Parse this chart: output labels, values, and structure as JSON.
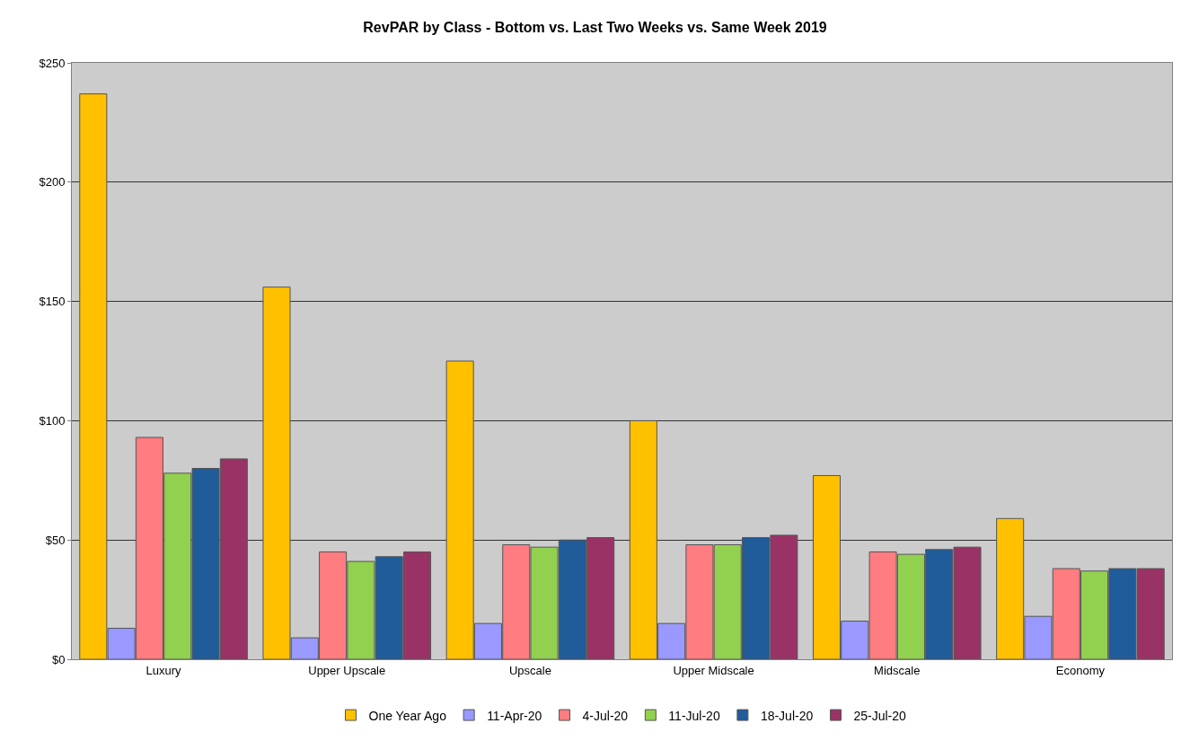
{
  "chart_data": {
    "type": "bar",
    "title": "RevPAR by Class - Bottom vs. Last Two Weeks vs. Same Week 2019",
    "categories": [
      "Luxury",
      "Upper Upscale",
      "Upscale",
      "Upper Midscale",
      "Midscale",
      "Economy"
    ],
    "series": [
      {
        "name": "One Year Ago",
        "color": "#ffc000",
        "values": [
          237,
          156,
          125,
          100,
          77,
          59
        ]
      },
      {
        "name": "11-Apr-20",
        "color": "#9999ff",
        "values": [
          13,
          9,
          15,
          15,
          16,
          18
        ]
      },
      {
        "name": "4-Jul-20",
        "color": "#ff7c80",
        "values": [
          93,
          45,
          48,
          48,
          45,
          38
        ]
      },
      {
        "name": "11-Jul-20",
        "color": "#92d050",
        "values": [
          78,
          41,
          47,
          48,
          44,
          37
        ]
      },
      {
        "name": "18-Jul-20",
        "color": "#1f5c99",
        "values": [
          80,
          43,
          50,
          51,
          46,
          38
        ]
      },
      {
        "name": "25-Jul-20",
        "color": "#993366",
        "values": [
          84,
          45,
          51,
          52,
          47,
          38
        ]
      }
    ],
    "ylim": [
      0,
      250
    ],
    "yticks": [
      {
        "value": 0,
        "label": "$0"
      },
      {
        "value": 50,
        "label": "$50"
      },
      {
        "value": 100,
        "label": "$100"
      },
      {
        "value": 150,
        "label": "$150"
      },
      {
        "value": 200,
        "label": "$200"
      },
      {
        "value": 250,
        "label": "$250"
      }
    ],
    "grid": "y",
    "legend": "bottom"
  }
}
